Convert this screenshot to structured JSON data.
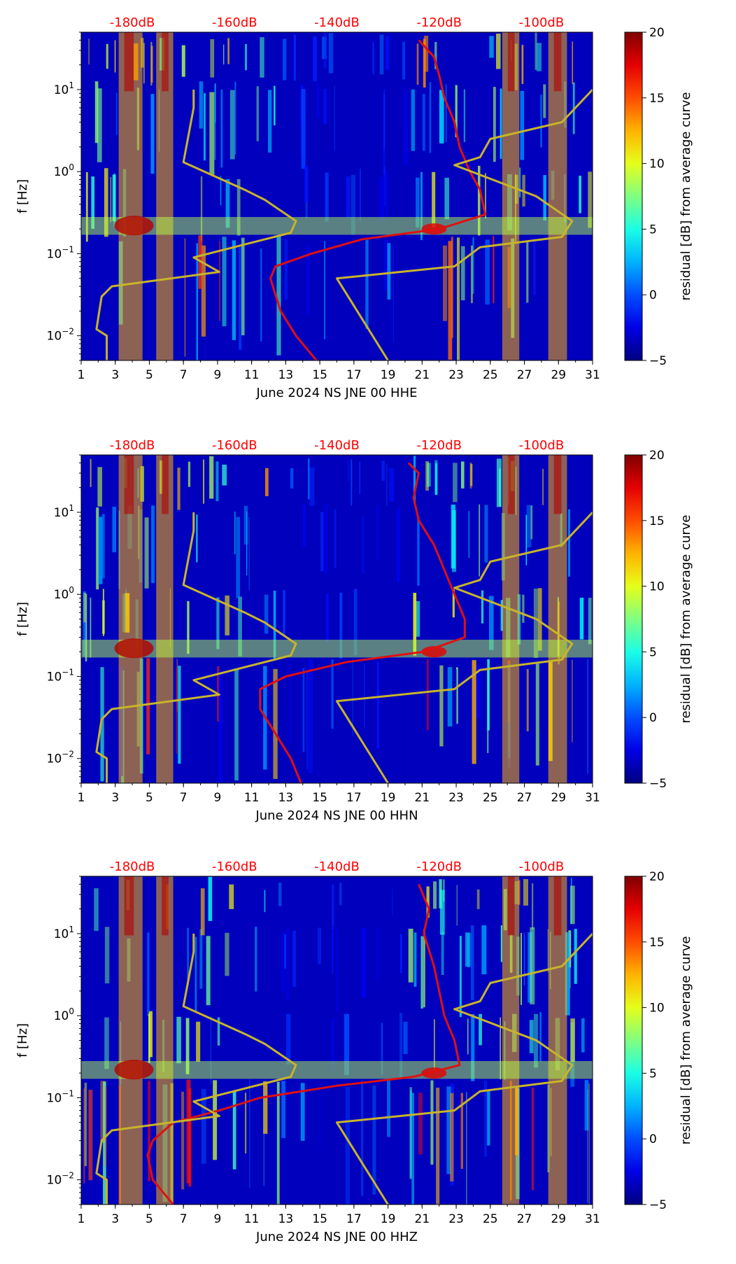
{
  "chart_data": [
    {
      "type": "heatmap",
      "panel": "HHE",
      "xlabel": "June 2024 NS JNE 00 HHE",
      "ylabel": "f [Hz]",
      "xlim": [
        1,
        31
      ],
      "ylim": [
        0.005,
        50
      ],
      "yscale": "log",
      "x_ticks": [
        "1",
        "3",
        "5",
        "7",
        "9",
        "11",
        "13",
        "15",
        "17",
        "19",
        "21",
        "23",
        "25",
        "27",
        "29",
        "31"
      ],
      "y_ticks": [
        {
          "base": "10",
          "exp": "1",
          "value": 10
        },
        {
          "base": "10",
          "exp": "0",
          "value": 1
        },
        {
          "base": "10",
          "exp": "−1",
          "value": 0.1
        },
        {
          "base": "10",
          "exp": "−2",
          "value": 0.01
        }
      ],
      "top_axis": {
        "labels": [
          "-180dB",
          "-160dB",
          "-140dB",
          "-120dB",
          "-100dB"
        ],
        "values": [
          -180,
          -160,
          -140,
          -120,
          -100
        ],
        "range": [
          -190,
          -90
        ],
        "color": "#ff0000"
      },
      "colorbar": {
        "label": "residual [dB] from average curve",
        "ticks": [
          "20",
          "15",
          "10",
          "5",
          "0",
          "−5"
        ],
        "range": [
          -5,
          20
        ]
      },
      "series": [
        {
          "name": "average noise curve",
          "color": "#e01010",
          "points": [
            [
              -124,
              40
            ],
            [
              -121,
              25
            ],
            [
              -120,
              15
            ],
            [
              -119,
              8
            ],
            [
              -117,
              4
            ],
            [
              -116,
              2
            ],
            [
              -114,
              1
            ],
            [
              -112,
              0.6
            ],
            [
              -111,
              0.3
            ],
            [
              -120,
              0.2
            ],
            [
              -135,
              0.15
            ],
            [
              -145,
              0.1
            ],
            [
              -152,
              0.07
            ],
            [
              -153,
              0.05
            ],
            [
              -151,
              0.02
            ],
            [
              -148,
              0.01
            ],
            [
              -144,
              0.005
            ]
          ]
        },
        {
          "name": "model curve",
          "color": "#c8b42a",
          "points": [
            [
              -168,
              10
            ],
            [
              -168,
              6
            ],
            [
              -170,
              1.3
            ],
            [
              -158,
              0.6
            ],
            [
              -154,
              0.45
            ],
            [
              -148,
              0.25
            ],
            [
              -149,
              0.18
            ],
            [
              -168,
              0.09
            ],
            [
              -163,
              0.06
            ],
            [
              -184,
              0.04
            ],
            [
              -186,
              0.03
            ],
            [
              -187,
              0.012
            ],
            [
              -185,
              0.01
            ],
            [
              -185,
              0.005
            ]
          ]
        },
        {
          "name": "model curve",
          "color": "#c8b42a",
          "points": [
            [
              -90,
              10
            ],
            [
              -96,
              4
            ],
            [
              -110,
              2.5
            ],
            [
              -112,
              1.5
            ],
            [
              -117,
              1.2
            ],
            [
              -101,
              0.5
            ],
            [
              -94,
              0.25
            ],
            [
              -96,
              0.16
            ],
            [
              -112,
              0.12
            ],
            [
              -117,
              0.07
            ],
            [
              -140,
              0.05
            ],
            [
              -130,
              0.005
            ]
          ]
        }
      ]
    },
    {
      "type": "heatmap",
      "panel": "HHN",
      "xlabel": "June 2024 NS JNE 00 HHN",
      "ylabel": "f [Hz]",
      "xlim": [
        1,
        31
      ],
      "ylim": [
        0.005,
        50
      ],
      "yscale": "log",
      "x_ticks": [
        "1",
        "3",
        "5",
        "7",
        "9",
        "11",
        "13",
        "15",
        "17",
        "19",
        "21",
        "23",
        "25",
        "27",
        "29",
        "31"
      ],
      "y_ticks": [
        {
          "base": "10",
          "exp": "1",
          "value": 10
        },
        {
          "base": "10",
          "exp": "0",
          "value": 1
        },
        {
          "base": "10",
          "exp": "−1",
          "value": 0.1
        },
        {
          "base": "10",
          "exp": "−2",
          "value": 0.01
        }
      ],
      "top_axis": {
        "labels": [
          "-180dB",
          "-160dB",
          "-140dB",
          "-120dB",
          "-100dB"
        ],
        "values": [
          -180,
          -160,
          -140,
          -120,
          -100
        ],
        "range": [
          -190,
          -90
        ],
        "color": "#ff0000"
      },
      "colorbar": {
        "label": "residual [dB] from average curve",
        "ticks": [
          "20",
          "15",
          "10",
          "5",
          "0",
          "−5"
        ],
        "range": [
          -5,
          20
        ]
      },
      "series": [
        {
          "name": "average noise curve",
          "color": "#e01010",
          "points": [
            [
              -126,
              40
            ],
            [
              -124,
              30
            ],
            [
              -125,
              15
            ],
            [
              -124,
              8
            ],
            [
              -121,
              4
            ],
            [
              -119,
              2
            ],
            [
              -117,
              1
            ],
            [
              -115,
              0.5
            ],
            [
              -115,
              0.3
            ],
            [
              -123,
              0.2
            ],
            [
              -138,
              0.15
            ],
            [
              -150,
              0.1
            ],
            [
              -155,
              0.07
            ],
            [
              -155,
              0.04
            ],
            [
              -152,
              0.02
            ],
            [
              -149,
              0.01
            ],
            [
              -147,
              0.005
            ]
          ]
        },
        {
          "name": "model curve",
          "color": "#c8b42a",
          "points": [
            [
              -168,
              10
            ],
            [
              -168,
              6
            ],
            [
              -170,
              1.3
            ],
            [
              -158,
              0.6
            ],
            [
              -154,
              0.45
            ],
            [
              -148,
              0.25
            ],
            [
              -149,
              0.18
            ],
            [
              -168,
              0.09
            ],
            [
              -163,
              0.06
            ],
            [
              -184,
              0.04
            ],
            [
              -186,
              0.03
            ],
            [
              -187,
              0.012
            ],
            [
              -185,
              0.01
            ],
            [
              -185,
              0.005
            ]
          ]
        },
        {
          "name": "model curve",
          "color": "#c8b42a",
          "points": [
            [
              -90,
              10
            ],
            [
              -96,
              4
            ],
            [
              -110,
              2.5
            ],
            [
              -112,
              1.5
            ],
            [
              -117,
              1.2
            ],
            [
              -101,
              0.5
            ],
            [
              -94,
              0.25
            ],
            [
              -96,
              0.16
            ],
            [
              -112,
              0.12
            ],
            [
              -117,
              0.07
            ],
            [
              -140,
              0.05
            ],
            [
              -130,
              0.005
            ]
          ]
        }
      ]
    },
    {
      "type": "heatmap",
      "panel": "HHZ",
      "xlabel": "June 2024 NS JNE 00 HHZ",
      "ylabel": "f [Hz]",
      "xlim": [
        1,
        31
      ],
      "ylim": [
        0.005,
        50
      ],
      "yscale": "log",
      "x_ticks": [
        "1",
        "3",
        "5",
        "7",
        "9",
        "11",
        "13",
        "15",
        "17",
        "19",
        "21",
        "23",
        "25",
        "27",
        "29",
        "31"
      ],
      "y_ticks": [
        {
          "base": "10",
          "exp": "1",
          "value": 10
        },
        {
          "base": "10",
          "exp": "0",
          "value": 1
        },
        {
          "base": "10",
          "exp": "−1",
          "value": 0.1
        },
        {
          "base": "10",
          "exp": "−2",
          "value": 0.01
        }
      ],
      "top_axis": {
        "labels": [
          "-180dB",
          "-160dB",
          "-140dB",
          "-120dB",
          "-100dB"
        ],
        "values": [
          -180,
          -160,
          -140,
          -120,
          -100
        ],
        "range": [
          -190,
          -90
        ],
        "color": "#ff0000"
      },
      "colorbar": {
        "label": "residual [dB] from average curve",
        "ticks": [
          "20",
          "15",
          "10",
          "5",
          "0",
          "−5"
        ],
        "range": [
          -5,
          20
        ]
      },
      "series": [
        {
          "name": "average noise curve",
          "color": "#e01010",
          "points": [
            [
              -124,
              40
            ],
            [
              -122,
              20
            ],
            [
              -123,
              10
            ],
            [
              -121,
              4
            ],
            [
              -120,
              2
            ],
            [
              -119,
              1
            ],
            [
              -117,
              0.5
            ],
            [
              -116,
              0.25
            ],
            [
              -125,
              0.18
            ],
            [
              -140,
              0.14
            ],
            [
              -155,
              0.1
            ],
            [
              -163,
              0.07
            ],
            [
              -172,
              0.05
            ],
            [
              -176,
              0.03
            ],
            [
              -177,
              0.02
            ],
            [
              -176,
              0.01
            ],
            [
              -172,
              0.005
            ]
          ]
        },
        {
          "name": "model curve",
          "color": "#c8b42a",
          "points": [
            [
              -168,
              10
            ],
            [
              -168,
              6
            ],
            [
              -170,
              1.3
            ],
            [
              -158,
              0.6
            ],
            [
              -154,
              0.45
            ],
            [
              -148,
              0.25
            ],
            [
              -149,
              0.18
            ],
            [
              -168,
              0.09
            ],
            [
              -163,
              0.06
            ],
            [
              -184,
              0.04
            ],
            [
              -186,
              0.03
            ],
            [
              -187,
              0.012
            ],
            [
              -185,
              0.01
            ],
            [
              -185,
              0.005
            ]
          ]
        },
        {
          "name": "model curve",
          "color": "#c8b42a",
          "points": [
            [
              -90,
              10
            ],
            [
              -96,
              4
            ],
            [
              -110,
              2.5
            ],
            [
              -112,
              1.5
            ],
            [
              -117,
              1.2
            ],
            [
              -101,
              0.5
            ],
            [
              -94,
              0.25
            ],
            [
              -96,
              0.16
            ],
            [
              -112,
              0.12
            ],
            [
              -117,
              0.07
            ],
            [
              -140,
              0.05
            ],
            [
              -130,
              0.005
            ]
          ]
        }
      ]
    }
  ]
}
